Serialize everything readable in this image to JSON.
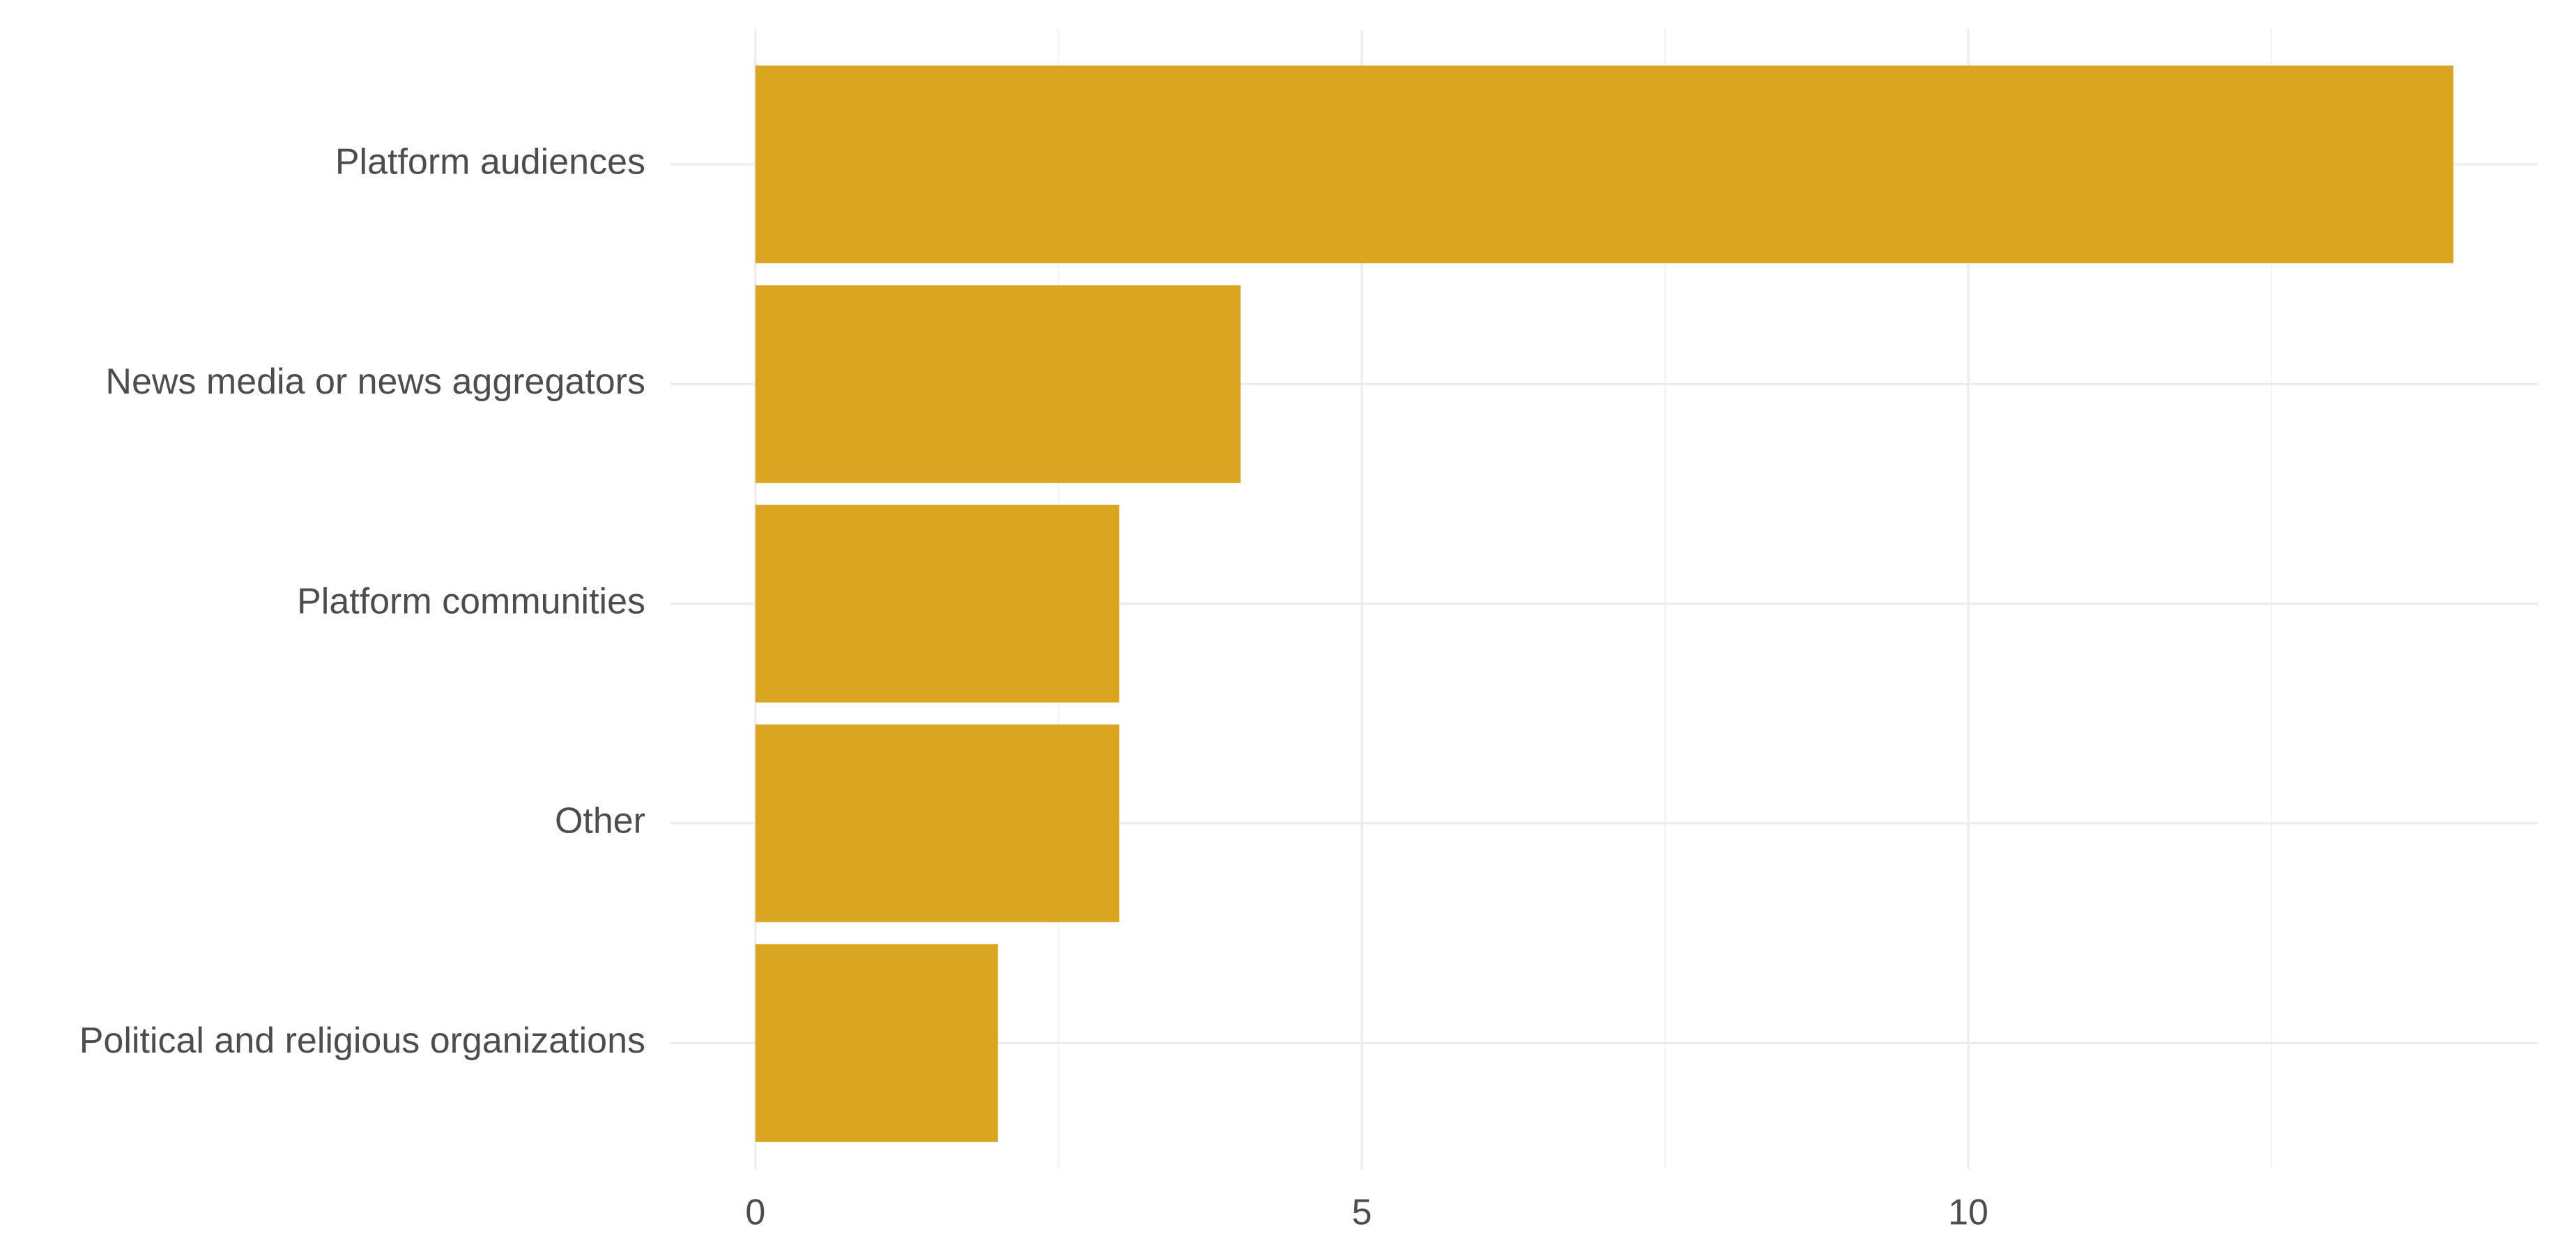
{
  "chart_data": {
    "type": "bar",
    "orientation": "horizontal",
    "categories": [
      "Platform audiences",
      "News media or news aggregators",
      "Platform communities",
      "Other",
      "Political and religious organizations"
    ],
    "values": [
      14,
      4,
      3,
      3,
      2
    ],
    "color": "#DAA520",
    "xlim": [
      -0.7,
      14.7
    ],
    "xticks": [
      0,
      5,
      10
    ],
    "xminorticks": [
      2.5,
      7.5,
      12.5
    ],
    "grid": true
  }
}
